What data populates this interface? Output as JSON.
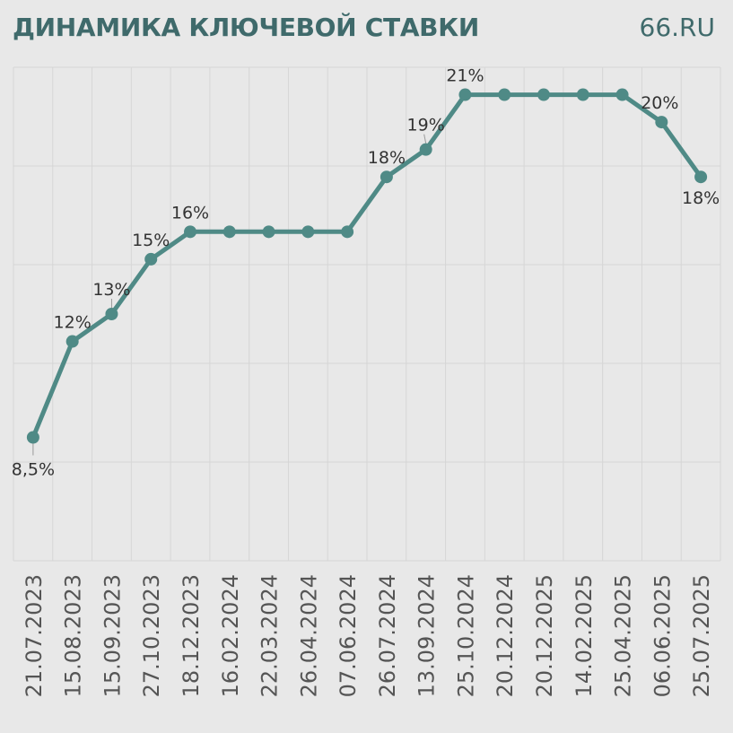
{
  "header": {
    "title": "ДИНАМИКА КЛЮЧЕВОЙ СТАВКИ",
    "brand": "66.RU"
  },
  "colors": {
    "background": "#e8e8e8",
    "accent": "#3f6a6b",
    "line": "#4f8a86"
  },
  "chart_data": {
    "type": "line",
    "title": "ДИНАМИКА КЛЮЧЕВОЙ СТАВКИ",
    "xlabel": "",
    "ylabel": "",
    "grid": true,
    "ylim": [
      4,
      22
    ],
    "categories": [
      "21.07.2023",
      "15.08.2023",
      "15.09.2023",
      "27.10.2023",
      "18.12.2023",
      "16.02.2024",
      "22.03.2024",
      "26.04.2024",
      "07.06.2024",
      "26.07.2024",
      "13.09.2024",
      "25.10.2024",
      "20.12.2024",
      "20.12.2025",
      "14.02.2025",
      "25.04.2025",
      "06.06.2025",
      "25.07.2025"
    ],
    "series": [
      {
        "values": [
          8.5,
          12,
          13,
          15,
          16,
          16,
          16,
          16,
          16,
          18,
          19,
          21,
          21,
          21,
          21,
          21,
          20,
          18
        ]
      }
    ],
    "data_labels": [
      "8,5%",
      "12%",
      "13%",
      "15%",
      "16%",
      "",
      "",
      "",
      "",
      "18%",
      "19%",
      "21%",
      "",
      "",
      "",
      "",
      "20%",
      "18%"
    ]
  }
}
